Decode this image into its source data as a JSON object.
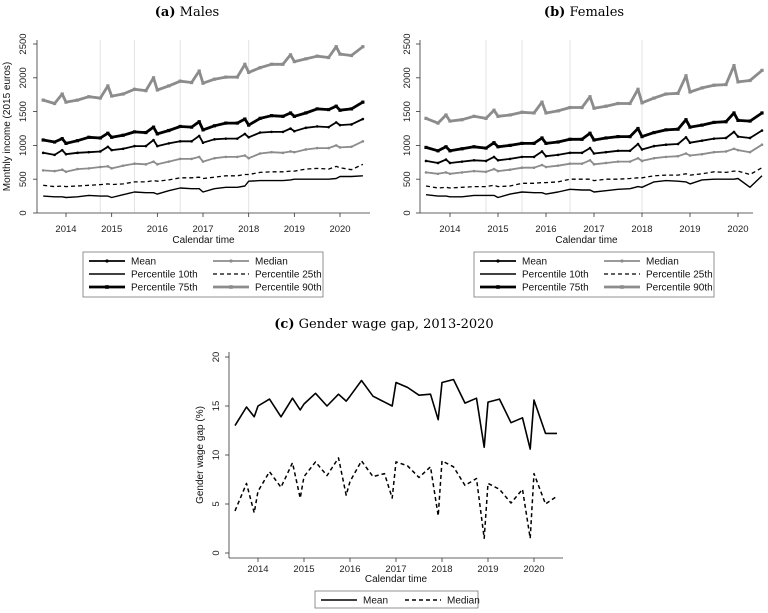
{
  "chart_data": [
    {
      "type": "line",
      "panel_label": "(a)",
      "title": "Males",
      "xlabel": "Calendar time",
      "ylabel": "Monthly income (2015 euros)",
      "ylim": [
        0,
        2500
      ],
      "yticks": [
        0,
        500,
        1000,
        1500,
        2000,
        2500
      ],
      "xticks": [
        2014,
        2015,
        2016,
        2017,
        2018,
        2019,
        2020
      ],
      "grid_x": [
        2014.75,
        2015.5,
        2016.5,
        2018
      ],
      "legend_position": "bottom",
      "x": [
        "2013-07",
        "2013-10",
        "2013-12",
        "2014-01",
        "2014-04",
        "2014-07",
        "2014-10",
        "2014-12",
        "2015-01",
        "2015-04",
        "2015-07",
        "2015-10",
        "2015-12",
        "2016-01",
        "2016-04",
        "2016-07",
        "2016-10",
        "2016-12",
        "2017-01",
        "2017-04",
        "2017-07",
        "2017-10",
        "2017-12",
        "2018-01",
        "2018-04",
        "2018-07",
        "2018-10",
        "2018-12",
        "2019-01",
        "2019-04",
        "2019-07",
        "2019-10",
        "2019-12",
        "2020-01",
        "2020-04",
        "2020-07"
      ],
      "series": [
        {
          "name": "Mean",
          "color": "#000000",
          "style": "mean",
          "values": [
            890,
            860,
            930,
            870,
            890,
            900,
            910,
            980,
            930,
            950,
            990,
            990,
            1080,
            990,
            1030,
            1060,
            1060,
            1140,
            1040,
            1090,
            1100,
            1100,
            1170,
            1120,
            1190,
            1200,
            1200,
            1250,
            1210,
            1260,
            1280,
            1270,
            1340,
            1300,
            1310,
            1390
          ]
        },
        {
          "name": "Median",
          "color": "#8c8c8c",
          "style": "median",
          "values": [
            630,
            620,
            640,
            610,
            650,
            660,
            680,
            690,
            660,
            700,
            730,
            720,
            760,
            720,
            760,
            800,
            800,
            830,
            760,
            810,
            830,
            830,
            850,
            810,
            880,
            900,
            890,
            910,
            900,
            940,
            960,
            960,
            1000,
            970,
            980,
            1060
          ]
        },
        {
          "name": "Percentile 10th",
          "color": "#000000",
          "style": "p10",
          "values": [
            250,
            240,
            240,
            230,
            240,
            260,
            250,
            250,
            230,
            270,
            310,
            300,
            300,
            280,
            330,
            370,
            360,
            360,
            310,
            360,
            380,
            380,
            400,
            470,
            480,
            480,
            480,
            490,
            500,
            500,
            500,
            500,
            510,
            540,
            540,
            550
          ]
        },
        {
          "name": "Percentile 25th",
          "color": "#000000",
          "style": "p25",
          "values": [
            410,
            390,
            400,
            390,
            400,
            410,
            420,
            430,
            420,
            430,
            460,
            460,
            480,
            470,
            490,
            520,
            520,
            530,
            510,
            530,
            550,
            550,
            570,
            570,
            600,
            610,
            610,
            620,
            620,
            650,
            660,
            650,
            690,
            670,
            640,
            720
          ]
        },
        {
          "name": "Percentile 75th",
          "color": "#000000",
          "style": "p75",
          "values": [
            1080,
            1050,
            1100,
            1030,
            1070,
            1120,
            1110,
            1180,
            1120,
            1150,
            1200,
            1190,
            1270,
            1170,
            1220,
            1280,
            1270,
            1350,
            1230,
            1290,
            1330,
            1330,
            1390,
            1300,
            1400,
            1440,
            1430,
            1480,
            1430,
            1480,
            1540,
            1530,
            1580,
            1520,
            1540,
            1640
          ]
        },
        {
          "name": "Percentile 90th",
          "color": "#8c8c8c",
          "style": "p90",
          "values": [
            1670,
            1620,
            1760,
            1640,
            1670,
            1720,
            1700,
            1880,
            1730,
            1760,
            1830,
            1810,
            2000,
            1820,
            1880,
            1950,
            1930,
            2100,
            1920,
            1980,
            2010,
            2010,
            2200,
            2080,
            2150,
            2200,
            2200,
            2340,
            2240,
            2280,
            2320,
            2300,
            2460,
            2350,
            2330,
            2460
          ]
        }
      ]
    },
    {
      "type": "line",
      "panel_label": "(b)",
      "title": "Females",
      "xlabel": "Calendar time",
      "ylabel": "",
      "ylim": [
        0,
        2500
      ],
      "yticks": [
        0,
        500,
        1000,
        1500,
        2000,
        2500
      ],
      "xticks": [
        2014,
        2015,
        2016,
        2017,
        2018,
        2019,
        2020
      ],
      "grid_x": [
        2014.75,
        2015.5,
        2016.5,
        2018
      ],
      "legend_position": "bottom",
      "x": [
        "2013-07",
        "2013-10",
        "2013-12",
        "2014-01",
        "2014-04",
        "2014-07",
        "2014-10",
        "2014-12",
        "2015-01",
        "2015-04",
        "2015-07",
        "2015-10",
        "2015-12",
        "2016-01",
        "2016-04",
        "2016-07",
        "2016-10",
        "2016-12",
        "2017-01",
        "2017-04",
        "2017-07",
        "2017-10",
        "2017-12",
        "2018-01",
        "2018-04",
        "2018-07",
        "2018-10",
        "2018-12",
        "2019-01",
        "2019-04",
        "2019-07",
        "2019-10",
        "2019-12",
        "2020-01",
        "2020-04",
        "2020-07"
      ],
      "series": [
        {
          "name": "Mean",
          "color": "#000000",
          "style": "mean",
          "values": [
            770,
            740,
            790,
            740,
            760,
            780,
            770,
            830,
            780,
            800,
            830,
            830,
            910,
            840,
            860,
            890,
            890,
            960,
            880,
            900,
            920,
            920,
            1020,
            940,
            990,
            1010,
            1020,
            1120,
            1040,
            1070,
            1100,
            1110,
            1200,
            1130,
            1110,
            1220
          ]
        },
        {
          "name": "Median",
          "color": "#8c8c8c",
          "style": "median",
          "values": [
            600,
            580,
            600,
            580,
            600,
            620,
            610,
            650,
            620,
            640,
            670,
            670,
            710,
            680,
            700,
            730,
            730,
            780,
            720,
            740,
            760,
            760,
            810,
            770,
            810,
            830,
            840,
            880,
            850,
            870,
            900,
            910,
            950,
            930,
            900,
            1010
          ]
        },
        {
          "name": "Percentile 10th",
          "color": "#000000",
          "style": "p10",
          "values": [
            270,
            250,
            250,
            240,
            240,
            260,
            260,
            260,
            230,
            280,
            310,
            300,
            300,
            280,
            310,
            350,
            340,
            340,
            310,
            330,
            350,
            360,
            390,
            380,
            460,
            480,
            470,
            460,
            430,
            490,
            500,
            500,
            500,
            510,
            380,
            550
          ]
        },
        {
          "name": "Percentile 25th",
          "color": "#000000",
          "style": "p25",
          "values": [
            400,
            370,
            380,
            370,
            380,
            390,
            390,
            410,
            390,
            400,
            440,
            440,
            450,
            450,
            460,
            500,
            500,
            500,
            480,
            500,
            500,
            510,
            520,
            520,
            550,
            560,
            560,
            580,
            560,
            580,
            610,
            600,
            620,
            620,
            570,
            670
          ]
        },
        {
          "name": "Percentile 75th",
          "color": "#000000",
          "style": "p75",
          "values": [
            970,
            920,
            980,
            920,
            950,
            980,
            960,
            1040,
            980,
            1000,
            1030,
            1030,
            1110,
            1030,
            1050,
            1090,
            1090,
            1180,
            1080,
            1110,
            1130,
            1130,
            1250,
            1130,
            1190,
            1230,
            1240,
            1380,
            1270,
            1300,
            1340,
            1350,
            1480,
            1370,
            1360,
            1480
          ]
        },
        {
          "name": "Percentile 90th",
          "color": "#8c8c8c",
          "style": "p90",
          "values": [
            1400,
            1330,
            1450,
            1360,
            1380,
            1430,
            1400,
            1520,
            1430,
            1450,
            1490,
            1480,
            1640,
            1480,
            1510,
            1560,
            1560,
            1720,
            1550,
            1580,
            1620,
            1620,
            1830,
            1630,
            1700,
            1760,
            1770,
            2030,
            1790,
            1850,
            1890,
            1900,
            2180,
            1940,
            1960,
            2110
          ]
        }
      ]
    },
    {
      "type": "line",
      "panel_label": "(c)",
      "title": "Gender wage gap, 2013-2020",
      "xlabel": "Calendar time",
      "ylabel": "Gender wage gap (%)",
      "ylim": [
        0,
        20
      ],
      "yticks": [
        0,
        5,
        10,
        15,
        20
      ],
      "xticks": [
        2014,
        2015,
        2016,
        2017,
        2018,
        2019,
        2020
      ],
      "grid_x": [],
      "legend_position": "bottom",
      "x": [
        "2013-07",
        "2013-10",
        "2013-12",
        "2014-01",
        "2014-04",
        "2014-07",
        "2014-10",
        "2014-12",
        "2015-01",
        "2015-04",
        "2015-07",
        "2015-10",
        "2015-12",
        "2016-01",
        "2016-04",
        "2016-07",
        "2016-10",
        "2016-12",
        "2017-01",
        "2017-04",
        "2017-07",
        "2017-10",
        "2017-12",
        "2018-01",
        "2018-04",
        "2018-07",
        "2018-10",
        "2018-12",
        "2019-01",
        "2019-04",
        "2019-07",
        "2019-10",
        "2019-12",
        "2020-01",
        "2020-04",
        "2020-07"
      ],
      "series": [
        {
          "name": "Mean",
          "color": "#000000",
          "style": "solid",
          "values": [
            13.0,
            14.9,
            13.9,
            15.0,
            15.7,
            13.9,
            15.8,
            14.6,
            15.2,
            16.3,
            15.0,
            16.2,
            15.5,
            16.0,
            17.6,
            16.0,
            15.4,
            15.0,
            17.4,
            16.9,
            16.1,
            16.2,
            13.6,
            17.4,
            17.7,
            15.3,
            15.8,
            10.8,
            15.4,
            15.7,
            13.3,
            13.8,
            10.6,
            15.6,
            12.2,
            12.2
          ]
        },
        {
          "name": "Median",
          "color": "#000000",
          "style": "dash",
          "values": [
            4.3,
            7.1,
            4.1,
            6.3,
            8.3,
            6.7,
            9.2,
            5.6,
            7.8,
            9.3,
            7.9,
            9.7,
            5.9,
            7.3,
            9.4,
            7.8,
            8.1,
            5.6,
            9.3,
            8.9,
            7.7,
            8.8,
            3.8,
            9.4,
            8.8,
            6.9,
            7.6,
            1.5,
            7.1,
            6.5,
            5.1,
            6.5,
            1.5,
            8.1,
            5.0,
            5.8
          ]
        }
      ]
    }
  ]
}
